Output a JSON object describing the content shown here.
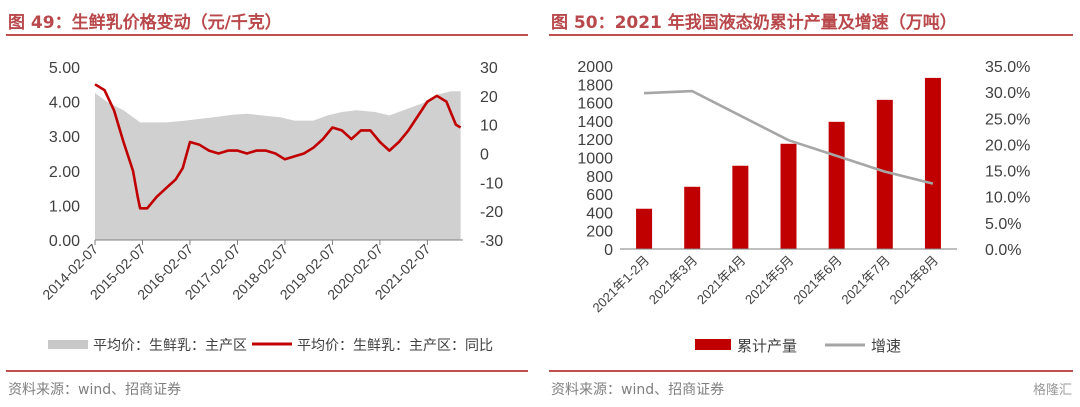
{
  "left": {
    "title": "图 49：生鲜乳价格变动（元/千克）",
    "source": "资料来源：wind、招商证券",
    "chart_data": {
      "type": "area",
      "x_ticks": [
        "2014-02-07",
        "2015-02-07",
        "2016-02-07",
        "2017-02-07",
        "2018-02-07",
        "2019-02-07",
        "2020-02-07",
        "2021-02-07"
      ],
      "y_left_ticks": [
        "5.00",
        "4.00",
        "3.00",
        "2.00",
        "1.00",
        "0.00"
      ],
      "y_right_ticks": [
        "30",
        "20",
        "10",
        "0",
        "-10",
        "-20",
        "-30"
      ],
      "ylim_left": [
        0,
        5
      ],
      "ylim_right": [
        -30,
        30
      ],
      "series": [
        {
          "name": "平均价：生鲜乳：主产区",
          "axis": "left",
          "color": "#c8c8c8",
          "x": [
            2014.1,
            2014.4,
            2014.7,
            2014.95,
            2015.05,
            2015.3,
            2015.6,
            2016.0,
            2016.3,
            2016.6,
            2017.0,
            2017.3,
            2017.6,
            2018.0,
            2018.3,
            2018.7,
            2019.0,
            2019.3,
            2019.6,
            2020.0,
            2020.3,
            2020.6,
            2021.0,
            2021.3,
            2021.6,
            2021.8
          ],
          "values": [
            4.25,
            3.95,
            3.75,
            3.5,
            3.4,
            3.4,
            3.4,
            3.45,
            3.5,
            3.55,
            3.62,
            3.65,
            3.6,
            3.55,
            3.45,
            3.45,
            3.6,
            3.7,
            3.75,
            3.7,
            3.6,
            3.75,
            3.95,
            4.2,
            4.3,
            4.3
          ]
        },
        {
          "name": "平均价：生鲜乳：主产区：同比",
          "axis": "right",
          "color": "#c00000",
          "x": [
            2014.1,
            2014.3,
            2014.5,
            2014.7,
            2014.9,
            2015.0,
            2015.05,
            2015.2,
            2015.4,
            2015.6,
            2015.8,
            2015.95,
            2016.1,
            2016.3,
            2016.5,
            2016.7,
            2016.9,
            2017.1,
            2017.3,
            2017.5,
            2017.7,
            2017.9,
            2018.1,
            2018.3,
            2018.5,
            2018.7,
            2018.9,
            2019.1,
            2019.3,
            2019.5,
            2019.7,
            2019.9,
            2020.1,
            2020.3,
            2020.5,
            2020.7,
            2020.9,
            2021.1,
            2021.3,
            2021.5,
            2021.6,
            2021.7,
            2021.8
          ],
          "values": [
            24,
            22,
            15,
            4,
            -6,
            -15,
            -19,
            -19,
            -15,
            -12,
            -9,
            -5,
            4,
            3,
            1,
            0,
            1,
            1,
            0,
            1,
            1,
            0,
            -2,
            -1,
            0,
            2,
            5,
            9,
            8,
            5,
            8,
            8,
            4,
            1,
            4,
            8,
            13,
            18,
            20,
            18,
            14,
            10,
            9
          ]
        }
      ]
    }
  },
  "right": {
    "title": "图 50：2021 年我国液态奶累计产量及增速（万吨）",
    "source": "资料来源：wind、招商证券",
    "chart_data": {
      "type": "bar",
      "categories": [
        "2021年1-2月",
        "2021年3月",
        "2021年4月",
        "2021年5月",
        "2021年6月",
        "2021年7月",
        "2021年8月"
      ],
      "ylim_left": [
        0,
        2000
      ],
      "ylim_right": [
        0,
        35
      ],
      "y_left_ticks": [
        "2000",
        "1800",
        "1600",
        "1400",
        "1200",
        "1000",
        "800",
        "600",
        "400",
        "200",
        "0"
      ],
      "y_right_ticks": [
        "35.0%",
        "30.0%",
        "25.0%",
        "20.0%",
        "15.0%",
        "10.0%",
        "5.0%",
        "0.0%"
      ],
      "series": [
        {
          "name": "累计产量",
          "kind": "bar",
          "axis": "left",
          "color": "#c00000",
          "values": [
            440,
            680,
            910,
            1150,
            1390,
            1630,
            1870
          ]
        },
        {
          "name": "增速",
          "kind": "line",
          "axis": "right",
          "color": "#a6a6a6",
          "values": [
            29.8,
            30.2,
            25.5,
            20.8,
            17.8,
            14.8,
            12.5
          ]
        }
      ]
    }
  },
  "watermark": "格隆汇",
  "colors": {
    "accent": "#c0504d",
    "title": "#b8484b"
  }
}
